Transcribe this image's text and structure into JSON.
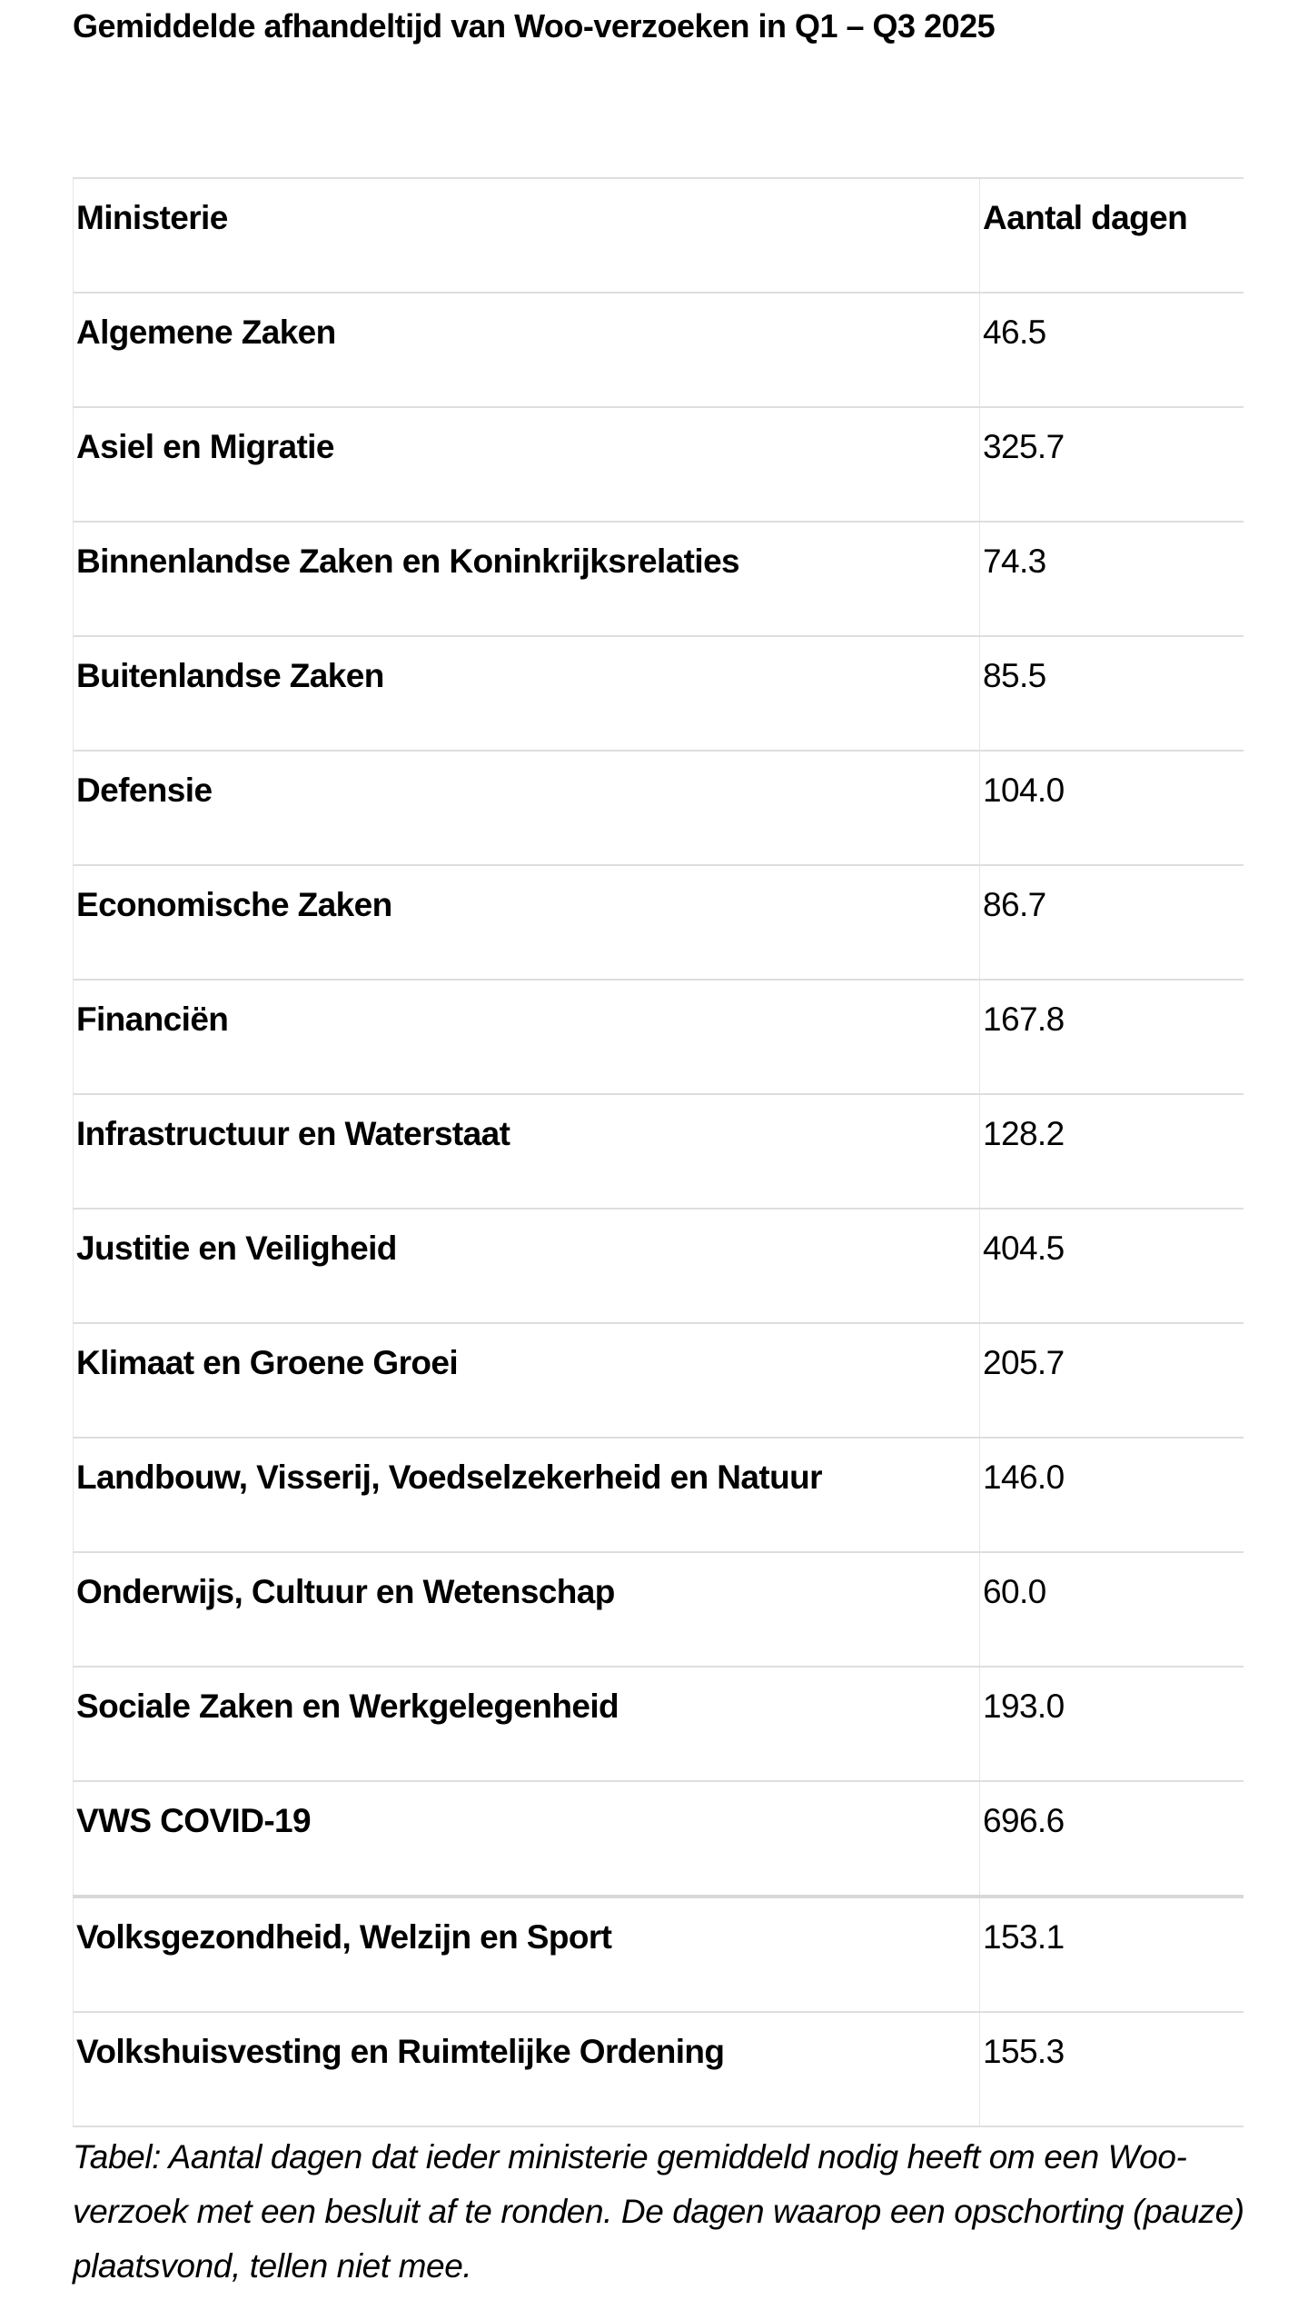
{
  "title": "Gemiddelde afhandeltijd van Woo-verzoeken in Q1 – Q3 2025",
  "table": {
    "headers": [
      "Ministerie",
      "Aantal dagen"
    ],
    "rows": [
      {
        "ministerie": "Algemene Zaken",
        "dagen": "46.5"
      },
      {
        "ministerie": "Asiel en Migratie",
        "dagen": "325.7"
      },
      {
        "ministerie": "Binnenlandse Zaken en Koninkrijksrelaties",
        "dagen": "74.3"
      },
      {
        "ministerie": "Buitenlandse Zaken",
        "dagen": "85.5"
      },
      {
        "ministerie": "Defensie",
        "dagen": "104.0"
      },
      {
        "ministerie": "Economische Zaken",
        "dagen": "86.7"
      },
      {
        "ministerie": "Financiën",
        "dagen": "167.8"
      },
      {
        "ministerie": "Infrastructuur en Waterstaat",
        "dagen": "128.2"
      },
      {
        "ministerie": "Justitie en Veiligheid",
        "dagen": "404.5"
      },
      {
        "ministerie": "Klimaat en Groene Groei",
        "dagen": "205.7"
      },
      {
        "ministerie": "Landbouw, Visserij, Voedselzekerheid en Natuur",
        "dagen": "146.0"
      },
      {
        "ministerie": "Onderwijs, Cultuur en Wetenschap",
        "dagen": "60.0"
      },
      {
        "ministerie": "Sociale Zaken en Werkgelegenheid",
        "dagen": "193.0"
      },
      {
        "ministerie": "VWS COVID-19",
        "dagen": "696.6"
      },
      {
        "ministerie": "Volksgezondheid, Welzijn en Sport",
        "dagen": "153.1"
      },
      {
        "ministerie": "Volkshuisvesting en Ruimtelijke Ordening",
        "dagen": "155.3"
      }
    ]
  },
  "caption": "Tabel: Aantal dagen dat ieder ministerie gemiddeld nodig heeft om een Woo-verzoek met een besluit af te ronden. De dagen waarop een opschorting (pauze) plaatsvond, tellen niet mee.",
  "colors": {
    "text": "#000000",
    "border": "#dedede",
    "background": "#ffffff"
  }
}
